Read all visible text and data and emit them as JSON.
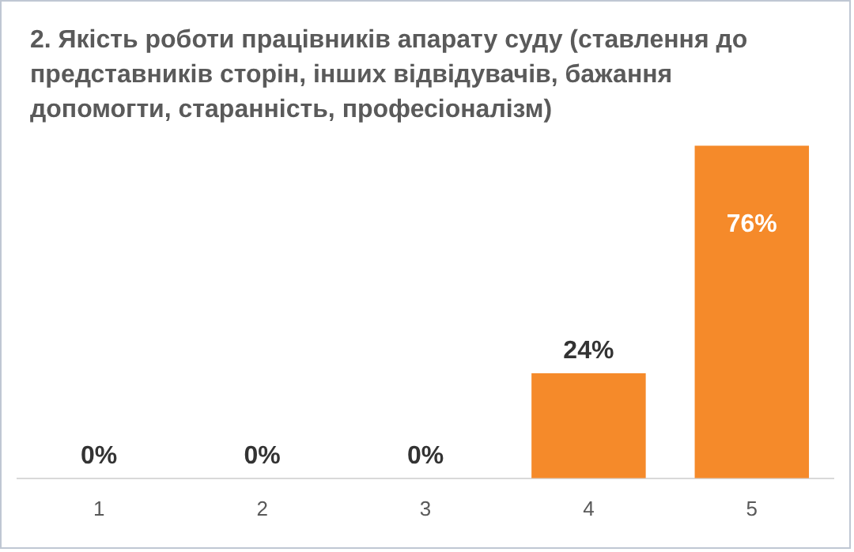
{
  "chart_data": {
    "type": "bar",
    "title": "2. Якість роботи працівників апарату суду (ставлення до представників сторін, інших відвідувачів, бажання допомогти, старанність, професіоналізм)",
    "categories": [
      "1",
      "2",
      "3",
      "4",
      "5"
    ],
    "values": [
      0,
      0,
      0,
      24,
      76
    ],
    "value_labels": [
      "0%",
      "0%",
      "0%",
      "24%",
      "76%"
    ],
    "color": "#f58a2a",
    "legend": false
  }
}
